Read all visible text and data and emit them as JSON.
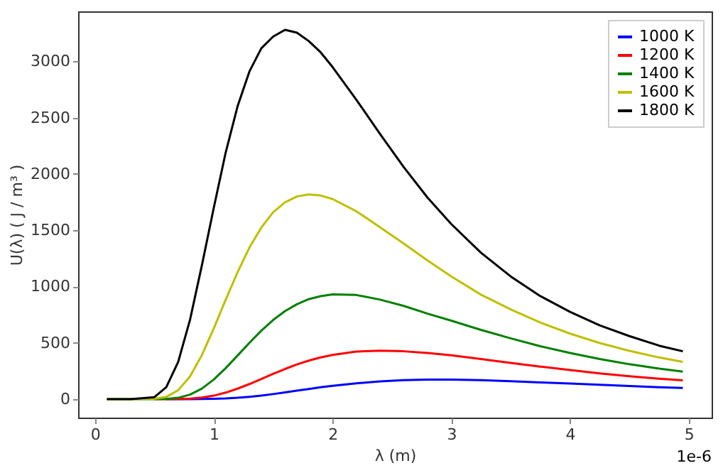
{
  "chart_data": {
    "type": "line",
    "xlabel": "λ (m)",
    "ylabel": "U(λ) ( J / m³ )",
    "annotations": [
      "1e-6"
    ],
    "x": [
      0.1,
      0.3,
      0.5,
      0.6,
      0.7,
      0.8,
      0.9,
      1.0,
      1.1,
      1.2,
      1.3,
      1.4,
      1.5,
      1.6,
      1.7,
      1.8,
      1.9,
      2.0,
      2.2,
      2.4,
      2.6,
      2.8,
      3.0,
      3.25,
      3.5,
      3.75,
      4.0,
      4.25,
      4.5,
      4.75,
      4.95
    ],
    "series": [
      {
        "name": "1000 K",
        "color": "#0000ff",
        "values": [
          null,
          null,
          null,
          0,
          0,
          0,
          1,
          3,
          6,
          12,
          21,
          32,
          45,
          60,
          75,
          90,
          105,
          118,
          141,
          158,
          168,
          173,
          173,
          168,
          160,
          149,
          138,
          127,
          117,
          106,
          99
        ]
      },
      {
        "name": "1200 K",
        "color": "#ff0000",
        "values": [
          null,
          null,
          0,
          0,
          1,
          5,
          14,
          31,
          58,
          93,
          134,
          179,
          224,
          268,
          308,
          342,
          371,
          393,
          422,
          431,
          425,
          410,
          389,
          356,
          321,
          289,
          259,
          229,
          204,
          182,
          167
        ]
      },
      {
        "name": "1400 K",
        "color": "#008000",
        "values": [
          0,
          0,
          0,
          2,
          12,
          40,
          94,
          174,
          275,
          387,
          500,
          608,
          703,
          782,
          843,
          888,
          915,
          930,
          925,
          884,
          828,
          759,
          697,
          615,
          540,
          470,
          410,
          356,
          310,
          271,
          245
        ]
      },
      {
        "name": "1600 K",
        "color": "#bfbf00",
        "values": [
          0,
          0,
          3,
          20,
          79,
          202,
          392,
          628,
          882,
          1127,
          1346,
          1524,
          1660,
          1748,
          1800,
          1818,
          1808,
          1777,
          1669,
          1527,
          1381,
          1231,
          1090,
          928,
          797,
          680,
          582,
          498,
          429,
          370,
          331
        ]
      },
      {
        "name": "1800 K",
        "color": "#000000",
        "values": [
          0,
          0,
          18,
          106,
          330,
          706,
          1190,
          1700,
          2190,
          2600,
          2910,
          3115,
          3220,
          3280,
          3255,
          3180,
          3080,
          2950,
          2660,
          2355,
          2060,
          1790,
          1555,
          1300,
          1090,
          915,
          775,
          655,
          560,
          475,
          425
        ]
      }
    ],
    "xlim": [
      -0.1425,
      5.1925
    ],
    "xticks": [
      0,
      1,
      2,
      3,
      4,
      5
    ],
    "ylim": [
      -164,
      3444
    ],
    "yticks": [
      0,
      500,
      1000,
      1500,
      2000,
      2500,
      3000
    ],
    "legend": "top right",
    "grid": false
  }
}
